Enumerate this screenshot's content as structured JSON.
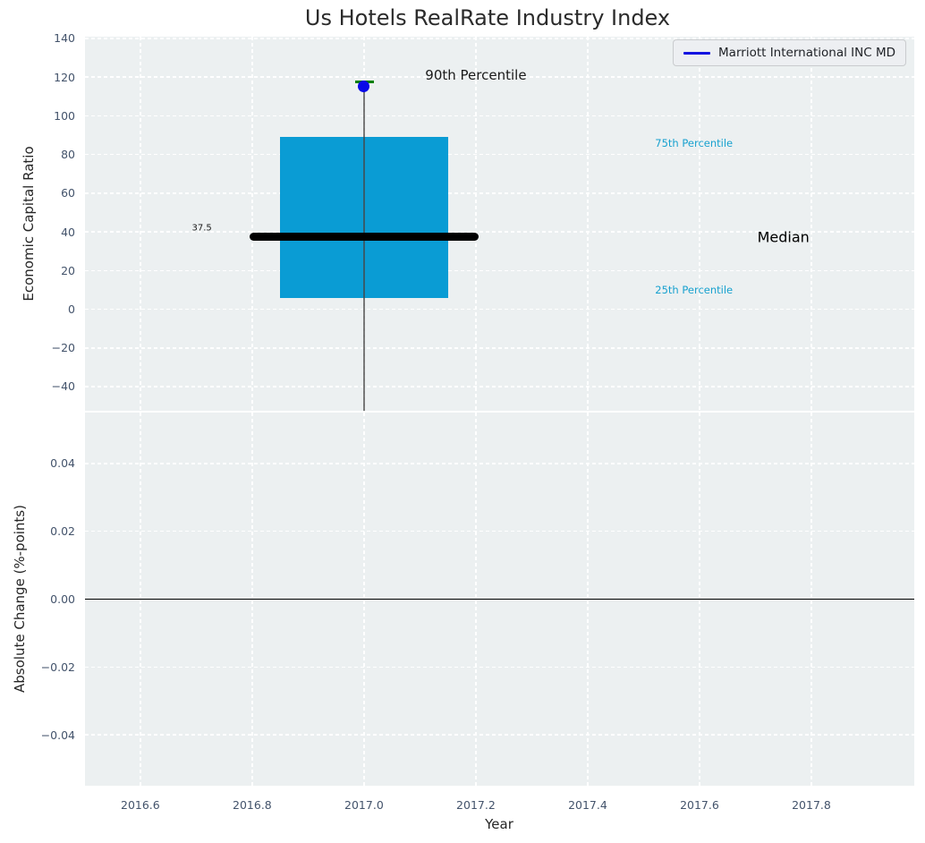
{
  "title": "Us Hotels RealRate Industry Index",
  "legend": {
    "label": "Marriott International INC MD",
    "line_color": "#1414e0"
  },
  "colors": {
    "figure_bg": "#ffffff",
    "plot_bg": "#ecf0f1",
    "grid": "#ffffff",
    "box_fill": "#0a9cd4",
    "median_line": "#000000",
    "whisker": "rgba(70,70,70,0.72)",
    "p90_cap": "#008000",
    "company_dot": "#0909e8",
    "tick_label": "#43536b",
    "percentile_text": "#18a1cf",
    "annotation_text": "#1a1a1a",
    "zero_line": "#000000"
  },
  "chart_data": {
    "type": "box",
    "title": "Us Hotels RealRate Industry Index",
    "xlabel": "Year",
    "xlim": [
      2016.501,
      2017.984
    ],
    "xticks": [
      {
        "v": 2016.6,
        "label": "2016.6"
      },
      {
        "v": 2016.8,
        "label": "2016.8"
      },
      {
        "v": 2017.0,
        "label": "2017.0"
      },
      {
        "v": 2017.2,
        "label": "2017.2"
      },
      {
        "v": 2017.4,
        "label": "2017.4"
      },
      {
        "v": 2017.6,
        "label": "2017.6"
      },
      {
        "v": 2017.8,
        "label": "2017.8"
      }
    ],
    "grid": "dashed white, on",
    "legend_position": "upper right",
    "subplots": [
      {
        "name": "economic-capital-ratio",
        "ylabel": "Economic Capital Ratio",
        "ylim": [
          -52.5,
          140.9
        ],
        "yticks": [
          {
            "v": 140,
            "label": "140"
          },
          {
            "v": 120,
            "label": "120"
          },
          {
            "v": 100,
            "label": "100"
          },
          {
            "v": 80,
            "label": "80"
          },
          {
            "v": 60,
            "label": "60"
          },
          {
            "v": 40,
            "label": "40"
          },
          {
            "v": 20,
            "label": "20"
          },
          {
            "v": 0,
            "label": "0"
          },
          {
            "v": -20,
            "label": "−20"
          },
          {
            "v": -40,
            "label": "−40"
          }
        ],
        "box": {
          "x": 2017.0,
          "x_left": 2016.85,
          "x_right": 2017.15,
          "q1": 6.0,
          "median": 37.5,
          "q3": 89.0,
          "p90": 117.5,
          "median_line_x_left": 2016.795,
          "median_line_x_right": 2017.205,
          "p90_cap_x_left": 2016.984,
          "p90_cap_x_right": 2017.017,
          "whisker_x": 2017.0,
          "whisker_low": -52.5,
          "whisker_low_clipped_below_axis": true
        },
        "point": {
          "series": "Marriott International INC MD",
          "x": 2017.0,
          "y": 115.0
        },
        "annotations": [
          {
            "id": "p90-percentile-label",
            "text": "90th Percentile",
            "x": 2017.2,
            "y": 121.0,
            "size": 15,
            "color": "#1a1a1a"
          },
          {
            "id": "p75-percentile-label",
            "text": "75th Percentile",
            "x": 2017.59,
            "y": 86.0,
            "size": 11.5,
            "color": "#18a1cf"
          },
          {
            "id": "median-value-label",
            "text": "37.5",
            "x": 2016.71,
            "y": 41.7,
            "size": 10,
            "color": "#1a1a1a"
          },
          {
            "id": "median-label",
            "text": "Median",
            "x": 2017.75,
            "y": 37.4,
            "size": 16,
            "color": "#000000"
          },
          {
            "id": "p25-percentile-label",
            "text": "25th Percentile",
            "x": 2017.59,
            "y": 9.8,
            "size": 11.5,
            "color": "#18a1cf"
          }
        ]
      },
      {
        "name": "absolute-change",
        "ylabel": "Absolute Change (%-points)",
        "ylim": [
          -0.055,
          0.055
        ],
        "yticks": [
          {
            "v": 0.04,
            "label": "0.04"
          },
          {
            "v": 0.02,
            "label": "0.02"
          },
          {
            "v": 0.0,
            "label": "0.00"
          },
          {
            "v": -0.02,
            "label": "−0.02"
          },
          {
            "v": -0.04,
            "label": "−0.04"
          }
        ],
        "zero_line": 0.0,
        "series": []
      }
    ]
  }
}
